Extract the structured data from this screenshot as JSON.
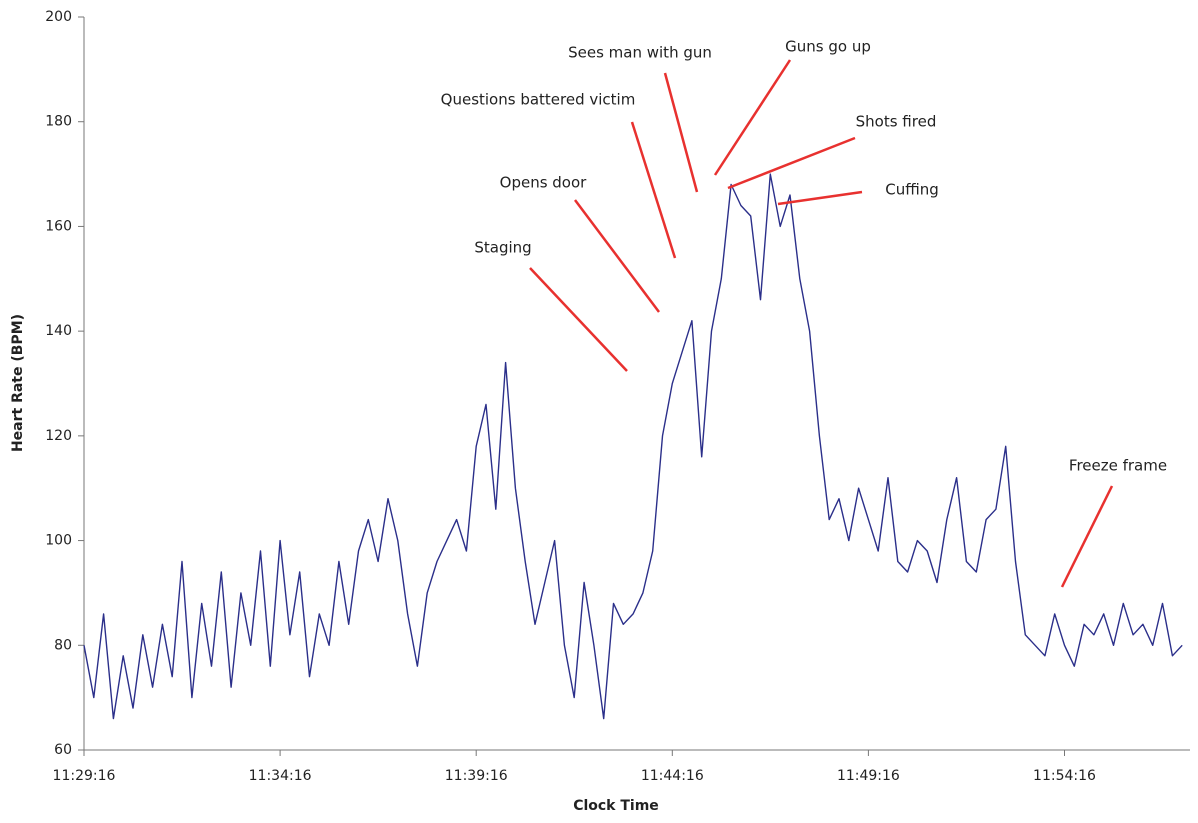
{
  "chart_data": {
    "type": "line",
    "x_label": "Clock Time",
    "y_label": "Heart Rate (BPM)",
    "x": [
      "11:29:16",
      "11:29:31",
      "11:29:46",
      "11:30:01",
      "11:30:16",
      "11:30:31",
      "11:30:46",
      "11:31:01",
      "11:31:16",
      "11:31:31",
      "11:31:46",
      "11:32:01",
      "11:32:16",
      "11:32:31",
      "11:32:46",
      "11:33:01",
      "11:33:16",
      "11:33:31",
      "11:33:46",
      "11:34:01",
      "11:34:16",
      "11:34:31",
      "11:34:46",
      "11:35:01",
      "11:35:16",
      "11:35:31",
      "11:35:46",
      "11:36:01",
      "11:36:16",
      "11:36:31",
      "11:36:46",
      "11:37:01",
      "11:37:16",
      "11:37:31",
      "11:37:46",
      "11:38:01",
      "11:38:16",
      "11:38:31",
      "11:38:46",
      "11:39:01",
      "11:39:16",
      "11:39:31",
      "11:39:46",
      "11:40:01",
      "11:40:16",
      "11:40:31",
      "11:40:46",
      "11:41:01",
      "11:41:16",
      "11:41:31",
      "11:41:46",
      "11:42:01",
      "11:42:16",
      "11:42:31",
      "11:42:46",
      "11:43:01",
      "11:43:16",
      "11:43:31",
      "11:43:46",
      "11:44:01",
      "11:44:16",
      "11:44:31",
      "11:44:46",
      "11:45:01",
      "11:45:16",
      "11:45:31",
      "11:45:46",
      "11:46:01",
      "11:46:16",
      "11:46:31",
      "11:46:46",
      "11:47:01",
      "11:47:16",
      "11:47:31",
      "11:47:46",
      "11:48:01",
      "11:48:16",
      "11:48:31",
      "11:48:46",
      "11:49:01",
      "11:49:16",
      "11:49:31",
      "11:49:46",
      "11:50:01",
      "11:50:16",
      "11:50:31",
      "11:50:46",
      "11:51:01",
      "11:51:16",
      "11:51:31",
      "11:51:46",
      "11:52:01",
      "11:52:16",
      "11:52:31",
      "11:52:46",
      "11:53:01",
      "11:53:16",
      "11:53:31",
      "11:53:46",
      "11:54:01",
      "11:54:16",
      "11:54:31",
      "11:54:46",
      "11:55:01",
      "11:55:16",
      "11:55:31",
      "11:55:46",
      "11:56:01",
      "11:56:16",
      "11:56:31",
      "11:56:46",
      "11:57:01",
      "11:57:16"
    ],
    "series": [
      {
        "name": "Heart Rate",
        "color": "#2b2f8a",
        "values": [
          80,
          70,
          86,
          66,
          78,
          68,
          82,
          72,
          84,
          74,
          96,
          70,
          88,
          76,
          94,
          72,
          90,
          80,
          98,
          76,
          100,
          82,
          94,
          74,
          86,
          80,
          96,
          84,
          98,
          104,
          96,
          108,
          100,
          86,
          76,
          90,
          96,
          100,
          104,
          98,
          118,
          126,
          106,
          134,
          110,
          96,
          84,
          92,
          100,
          80,
          70,
          92,
          80,
          66,
          88,
          84,
          86,
          90,
          98,
          120,
          130,
          136,
          142,
          116,
          140,
          150,
          168,
          164,
          162,
          146,
          170,
          160,
          166,
          150,
          140,
          120,
          104,
          108,
          100,
          110,
          104,
          98,
          112,
          96,
          94,
          100,
          98,
          92,
          104,
          112,
          96,
          94,
          104,
          106,
          118,
          96,
          82,
          80,
          78,
          86,
          80,
          76,
          84,
          82,
          86,
          80,
          88,
          82,
          84,
          80,
          88,
          78,
          80
        ]
      }
    ],
    "xlim": [
      "11:29:16",
      "11:57:28"
    ],
    "xticks": [
      "11:29:16",
      "11:34:16",
      "11:39:16",
      "11:44:16",
      "11:49:16",
      "11:54:16"
    ],
    "ylim": [
      60,
      200
    ],
    "yticks": [
      60,
      80,
      100,
      120,
      140,
      160,
      180,
      200
    ],
    "annotations": [
      "Staging",
      "Opens door",
      "Questions battered victim",
      "Sees man with gun",
      "Guns go up",
      "Shots fired",
      "Cuffing",
      "Freeze frame"
    ],
    "annotation_color": "#e8312f"
  }
}
